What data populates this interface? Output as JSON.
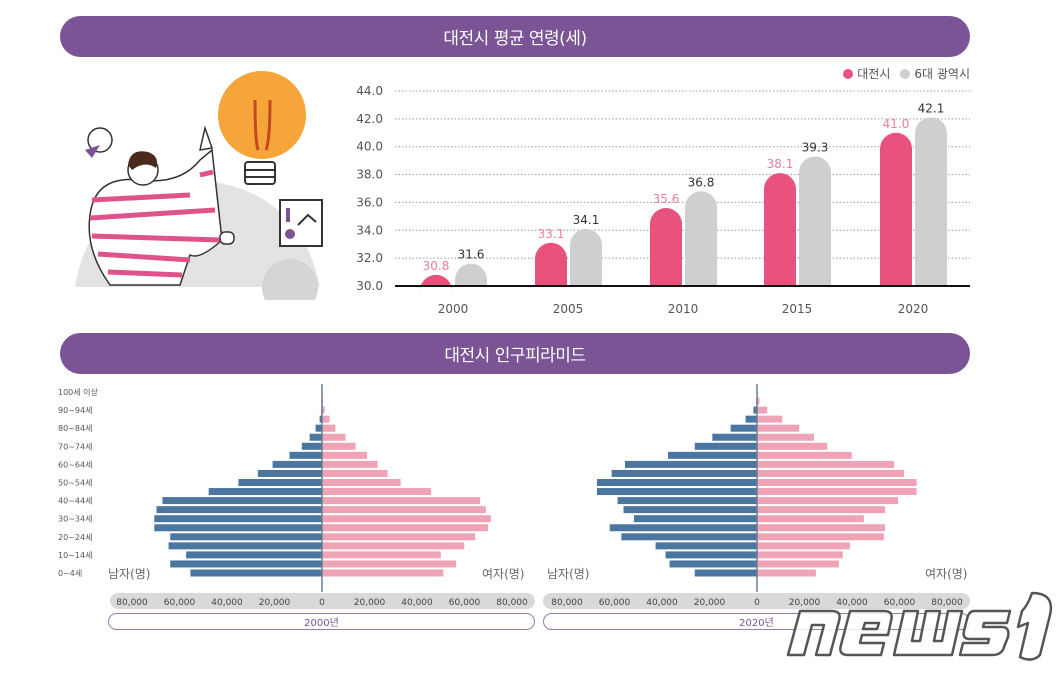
{
  "titles": {
    "avg_age": "대전시 평균 연령(세)",
    "pyramid": "대전시 인구피라미드"
  },
  "watermark": "news1",
  "colors": {
    "title_bg": "#7a5494",
    "daejeon": "#e8527c",
    "six_cities": "#cfcfd1",
    "male": "#4a76a0",
    "female": "#eea4b6"
  },
  "chart_data": [
    {
      "type": "bar",
      "categories": [
        "2000",
        "2005",
        "2010",
        "2015",
        "2020"
      ],
      "series": [
        {
          "name": "대전시",
          "values": [
            30.8,
            33.1,
            35.6,
            38.1,
            41.0
          ],
          "labels": [
            "30.8",
            "33.1",
            "35.6",
            "38.1",
            "41.0"
          ]
        },
        {
          "name": "6대 광역시",
          "values": [
            31.6,
            34.1,
            36.8,
            39.3,
            42.1
          ],
          "labels": [
            "31.6",
            "34.1",
            "36.8",
            "39.3",
            "42.1"
          ]
        }
      ],
      "ylim": [
        30,
        44
      ],
      "yticks": [
        "30.0",
        "32.0",
        "34.0",
        "36.0",
        "38.0",
        "40.0",
        "42.0",
        "44.0"
      ],
      "grid": "dotted horizontal",
      "legend": "top-right"
    },
    {
      "type": "bar",
      "orientation": "horizontal-pyramid",
      "title": "2000년",
      "age_labels": [
        "0~4세",
        "10~14세",
        "20~24세",
        "30~34세",
        "40~44세",
        "50~54세",
        "60~64세",
        "70~74세",
        "80~84세",
        "90~94세",
        "100세 이상"
      ],
      "categories": [
        "0-4",
        "5-9",
        "10-14",
        "15-19",
        "20-24",
        "25-29",
        "30-34",
        "35-39",
        "40-44",
        "45-49",
        "50-54",
        "55-59",
        "60-64",
        "65-69",
        "70-74",
        "75-79",
        "80-84",
        "85-89",
        "90-94",
        "95-99",
        "100+"
      ],
      "series": [
        {
          "name": "남자(명)",
          "values": [
            55400,
            63900,
            57200,
            64600,
            63900,
            70600,
            70600,
            69700,
            67200,
            47700,
            35200,
            27000,
            20800,
            13700,
            8500,
            5200,
            2700,
            1000,
            300,
            100,
            50
          ]
        },
        {
          "name": "여자(명)",
          "values": [
            51100,
            56500,
            50000,
            59900,
            64500,
            69900,
            71100,
            69000,
            66600,
            45900,
            33100,
            27600,
            23400,
            19000,
            14100,
            9900,
            5600,
            3200,
            1100,
            400,
            100
          ]
        }
      ],
      "xticks": [
        "80,000",
        "60,000",
        "40,000",
        "20,000",
        "0",
        "20,000",
        "40,000",
        "60,000",
        "80,000"
      ],
      "xlim": [
        -80000,
        80000
      ]
    },
    {
      "type": "bar",
      "orientation": "horizontal-pyramid",
      "title": "2020년",
      "categories": [
        "0-4",
        "5-9",
        "10-14",
        "15-19",
        "20-24",
        "25-29",
        "30-34",
        "35-39",
        "40-44",
        "45-49",
        "50-54",
        "55-59",
        "60-64",
        "65-69",
        "70-74",
        "75-79",
        "80-84",
        "85-89",
        "90-94",
        "95-99",
        "100+"
      ],
      "series": [
        {
          "name": "남자(명)",
          "values": [
            26200,
            36800,
            38500,
            42700,
            57100,
            62000,
            51800,
            56200,
            58700,
            67400,
            67400,
            61200,
            55600,
            37500,
            26200,
            18800,
            11100,
            4800,
            1500,
            300,
            100
          ]
        },
        {
          "name": "여자(명)",
          "values": [
            24800,
            34500,
            36100,
            39100,
            53400,
            53900,
            45000,
            53900,
            59400,
            67200,
            67200,
            61900,
            57700,
            39900,
            29600,
            24000,
            17800,
            10600,
            4300,
            1000,
            200
          ]
        }
      ],
      "xticks": [
        "80,000",
        "60,000",
        "40,000",
        "20,000",
        "0",
        "20,000",
        "40,000",
        "60,000",
        "80,000"
      ],
      "xlim": [
        -80000,
        80000
      ]
    }
  ]
}
